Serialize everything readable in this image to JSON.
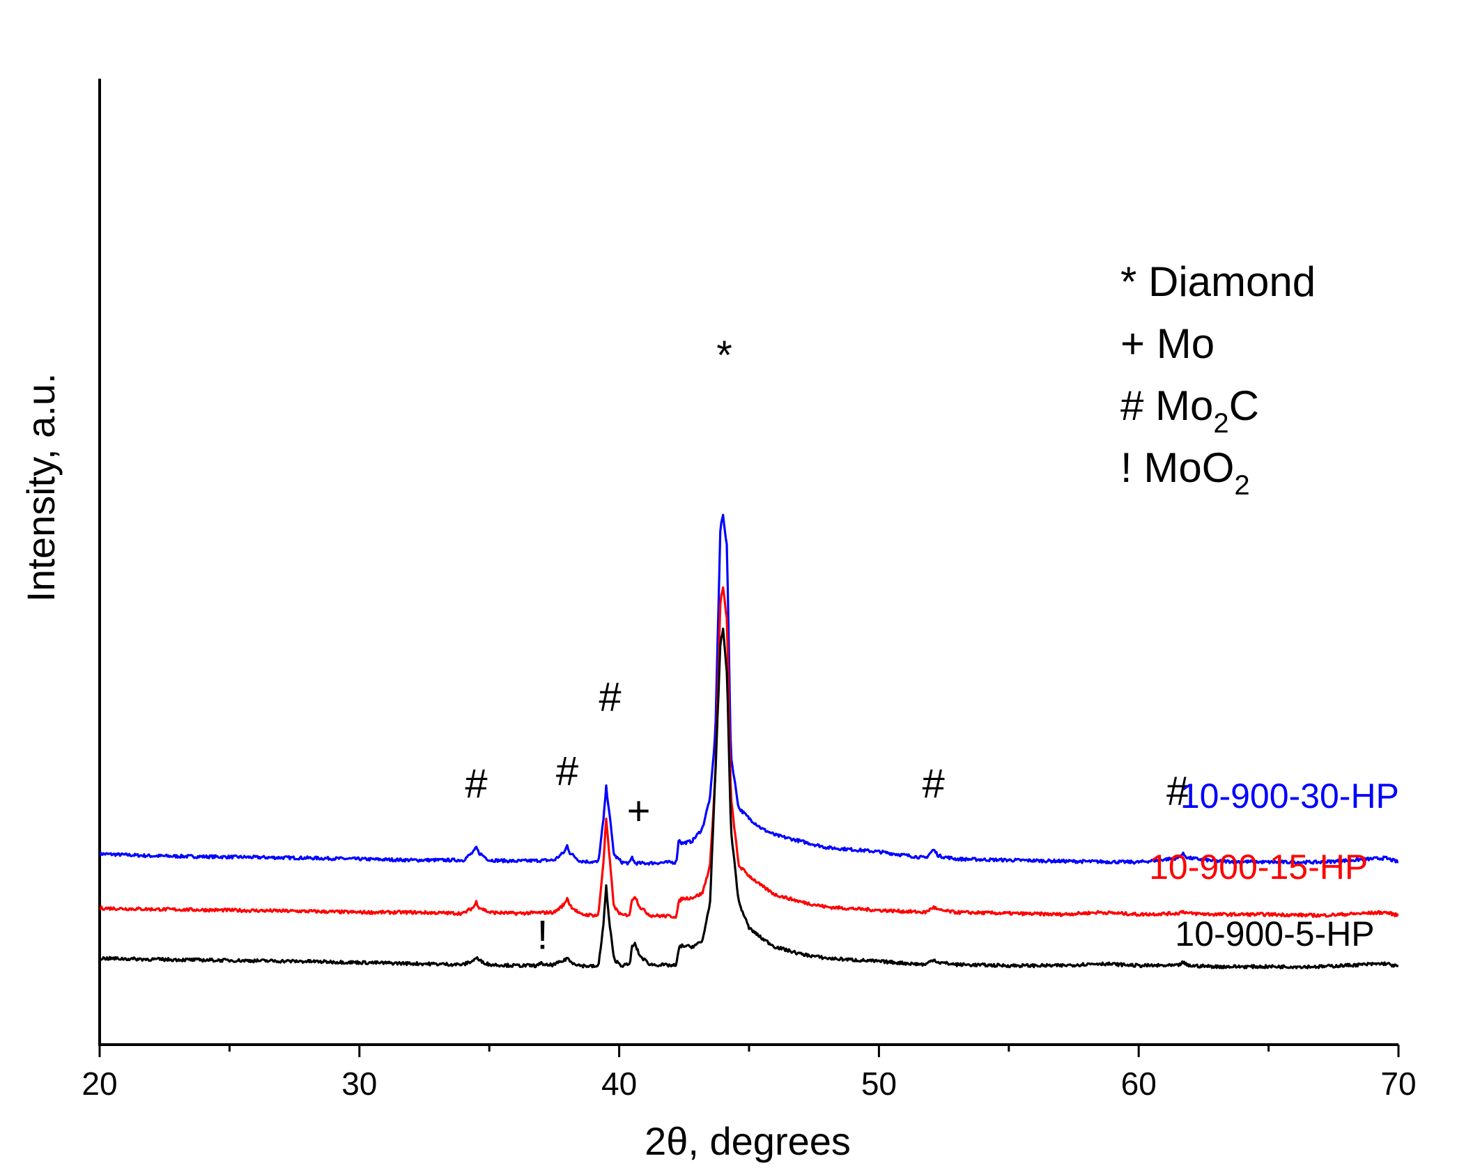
{
  "chart_data": {
    "type": "line",
    "title": "",
    "xlabel": "2θ, degrees",
    "ylabel": "Intensity, a.u.",
    "xlim": [
      20,
      70
    ],
    "x_ticks": [
      20,
      30,
      40,
      50,
      60,
      70
    ],
    "x_minor_ticks": [
      25,
      35,
      45,
      55,
      65
    ],
    "y_ticks": [],
    "legend": {
      "position": "top-right",
      "entries": [
        {
          "symbol": "*",
          "phase": "Diamond",
          "sub": ""
        },
        {
          "symbol": "+",
          "phase": "Mo",
          "sub": ""
        },
        {
          "symbol": "#",
          "phase": "Mo",
          "sub": "2",
          "tail": "C"
        },
        {
          "symbol": "!",
          "phase": "MoO",
          "sub": "2",
          "tail": ""
        }
      ]
    },
    "series": [
      {
        "name": "10-900-30-HP",
        "color": "#0000ff",
        "baseline": 100,
        "x": [
          20,
          22,
          25,
          28,
          30,
          32,
          34,
          34.4,
          34.5,
          34.6,
          35,
          36,
          37.5,
          37.9,
          38.0,
          38.1,
          38.5,
          39.2,
          39.4,
          39.5,
          39.6,
          39.8,
          40.1,
          40.4,
          40.5,
          40.6,
          41,
          42.2,
          42.3,
          42.4,
          42.8,
          43.2,
          43.5,
          43.7,
          43.9,
          44.0,
          44.15,
          44.3,
          44.6,
          45,
          45.5,
          46,
          47,
          48,
          50,
          51.8,
          52.1,
          52.3,
          53,
          55,
          57,
          60,
          61.5,
          61.7,
          61.9,
          63,
          65,
          67,
          69.5,
          70
        ],
        "y": [
          106,
          104,
          103,
          102,
          101,
          100,
          100,
          108,
          112,
          107,
          100,
          99,
          100,
          108,
          114,
          107,
          99,
          98,
          140,
          170,
          150,
          105,
          98,
          97,
          103,
          97,
          97,
          98,
          121,
          116,
          118,
          130,
          160,
          220,
          420,
          430,
          400,
          200,
          150,
          140,
          130,
          124,
          118,
          112,
          108,
          102,
          110,
          104,
          101,
          100,
          99,
          98,
          102,
          106,
          102,
          99,
          98,
          98,
          102,
          98
        ]
      },
      {
        "name": "10-900-15-HP",
        "color": "#ff0000",
        "baseline": 50,
        "x": [
          20,
          22,
          25,
          28,
          30,
          32,
          34,
          34.4,
          34.5,
          34.6,
          35,
          36,
          37.5,
          37.9,
          38.0,
          38.1,
          38.5,
          39.2,
          39.4,
          39.5,
          39.6,
          39.8,
          40.1,
          40.4,
          40.5,
          40.6,
          40.8,
          41.2,
          42.2,
          42.3,
          42.4,
          42.8,
          43.2,
          43.5,
          43.7,
          43.9,
          44.0,
          44.15,
          44.3,
          44.6,
          45,
          45.5,
          46,
          47,
          48,
          50,
          51.8,
          52.1,
          52.3,
          53,
          55,
          57,
          58.5,
          60,
          61.5,
          61.7,
          61.9,
          63,
          65,
          67,
          69.5,
          70
        ],
        "y": [
          54,
          53,
          52,
          51,
          50,
          50,
          49,
          55,
          60,
          55,
          50,
          49,
          50,
          58,
          64,
          57,
          48,
          47,
          100,
          140,
          110,
          55,
          47,
          48,
          62,
          66,
          55,
          47,
          46,
          60,
          63,
          64,
          68,
          95,
          180,
          350,
          360,
          330,
          160,
          95,
          85,
          75,
          67,
          60,
          55,
          52,
          50,
          55,
          52,
          50,
          49,
          48,
          50,
          48,
          49,
          51,
          49,
          48,
          48,
          47,
          50,
          47
        ]
      },
      {
        "name": "10-900-5-HP",
        "color": "#000000",
        "baseline": 0,
        "x": [
          20,
          22,
          25,
          28,
          30,
          32,
          34,
          34.4,
          34.5,
          34.6,
          35,
          36,
          36.9,
          37.0,
          37.1,
          37.5,
          37.9,
          38.0,
          38.1,
          38.5,
          39.2,
          39.4,
          39.5,
          39.6,
          39.8,
          40.1,
          40.4,
          40.5,
          40.6,
          40.8,
          41.2,
          42.2,
          42.3,
          42.4,
          42.8,
          43.2,
          43.5,
          43.7,
          43.9,
          44.0,
          44.15,
          44.3,
          44.6,
          45,
          45.5,
          46,
          47,
          48,
          50,
          51.8,
          52.1,
          52.3,
          53,
          55,
          57,
          58.5,
          60,
          61.5,
          61.7,
          61.9,
          63,
          65,
          67,
          69.5,
          70
        ],
        "y": [
          6,
          5,
          4,
          3,
          2,
          1,
          0,
          4,
          7,
          4,
          0,
          -1,
          -1,
          3,
          -1,
          0,
          4,
          7,
          3,
          -1,
          -2,
          40,
          75,
          45,
          5,
          -1,
          0,
          17,
          20,
          8,
          0,
          -1,
          16,
          18,
          17,
          22,
          60,
          180,
          310,
          320,
          280,
          130,
          60,
          35,
          25,
          17,
          10,
          6,
          3,
          0,
          5,
          2,
          0,
          -1,
          -1,
          1,
          -1,
          -1,
          2,
          -1,
          -2,
          -2,
          -2,
          1,
          -2
        ]
      }
    ],
    "peak_markers": [
      {
        "symbol": "*",
        "x": 44.05,
        "level": 570,
        "label": "Diamond"
      },
      {
        "symbol": "#",
        "x": 34.5,
        "level": 160,
        "label": "Mo2C"
      },
      {
        "symbol": "#",
        "x": 38.0,
        "level": 172,
        "label": "Mo2C"
      },
      {
        "symbol": "#",
        "x": 39.65,
        "level": 243,
        "label": "Mo2C"
      },
      {
        "symbol": "+",
        "x": 40.75,
        "level": 134,
        "label": "Mo"
      },
      {
        "symbol": "#",
        "x": 52.1,
        "level": 160,
        "label": "Mo2C"
      },
      {
        "symbol": "#",
        "x": 61.5,
        "level": 153,
        "label": "Mo2C"
      },
      {
        "symbol": "!",
        "x": 37.05,
        "level": 15,
        "label": "MoO2"
      }
    ],
    "series_labels": [
      {
        "text": "10-900-30-HP",
        "x": 61.6,
        "level": 150,
        "color": "#0000ff"
      },
      {
        "text": "10-900-15-HP",
        "x": 60.4,
        "level": 82,
        "color": "#ff0000"
      },
      {
        "text": "10-900-5-HP",
        "x": 61.4,
        "level": 18,
        "color": "#000000"
      }
    ]
  }
}
